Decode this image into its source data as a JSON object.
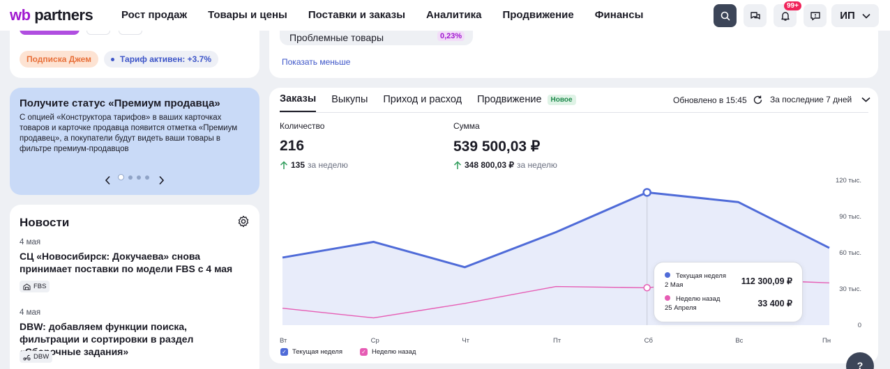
{
  "brand": {
    "prefix": "wb",
    "name": "partners"
  },
  "nav": [
    "Рост продаж",
    "Товары и цены",
    "Поставки и заказы",
    "Аналитика",
    "Продвижение",
    "Финансы"
  ],
  "topbar": {
    "notifications_badge": "99+",
    "user_initials": "ИП"
  },
  "subscription": {
    "pill": "Подписка Джем",
    "tariff": "Тариф активен: +3.7%"
  },
  "problems": {
    "label": "Проблемные товары",
    "value": "0,23%",
    "toggle": "Показать меньше"
  },
  "promo": {
    "title": "Получите статус «Премиум продавца»",
    "text": "С опцией «Конструктора тарифов» в ваших карточках товаров и карточке продавца появится отметка «Премиум продавец», а покупатели будут видеть ваши товары в фильтре премиум-продавцов"
  },
  "news": {
    "title": "Новости",
    "items": [
      {
        "date": "4 мая",
        "headline": "СЦ «Новосибирск: Докучаева» снова принимает поставки по модели FBS с 4 мая",
        "tag": "FBS"
      },
      {
        "date": "4 мая",
        "headline": "DBW: добавляем функции поиска, фильтрации и сортировки в раздел «Сборочные задания»",
        "tag": "DBW"
      }
    ]
  },
  "stats": {
    "tabs": [
      "Заказы",
      "Выкупы",
      "Приход и расход",
      "Продвижение"
    ],
    "new_badge": "Новое",
    "updated": "Обновлено в 15:45",
    "period": "За последние 7 дней",
    "quantity": {
      "label": "Количество",
      "value": "216",
      "delta": "135",
      "suffix": "за неделю"
    },
    "sum": {
      "label": "Сумма",
      "value": "539 500,03 ₽",
      "delta": "348 800,03 ₽",
      "suffix": "за неделю"
    }
  },
  "chart_data": {
    "type": "area",
    "categories": [
      "Вт",
      "Ср",
      "Чт",
      "Пт",
      "Сб",
      "Вс",
      "Пн"
    ],
    "y_ticks": [
      "0",
      "30 тыс.",
      "60 тыс.",
      "90 тыс.",
      "120 тыс."
    ],
    "ylim": [
      0,
      120000
    ],
    "series": [
      {
        "name": "Текущая неделя",
        "values": [
          56000,
          69000,
          48000,
          77000,
          110000,
          102000,
          64000
        ],
        "color": "#4f6bd8"
      },
      {
        "name": "Неделю назад",
        "values": [
          14000,
          6000,
          18000,
          32000,
          31000,
          38000,
          35000
        ],
        "color": "#e65cb4"
      }
    ],
    "tooltip": {
      "current": {
        "name": "Текущая неделя",
        "date": "2 Мая",
        "value": "112 300,09 ₽"
      },
      "previous": {
        "name": "Неделю назад",
        "date": "25 Апреля",
        "value": "33 400 ₽"
      }
    },
    "legend": [
      "Текущая неделя",
      "Неделю назад"
    ],
    "grid": false
  },
  "colors": {
    "accent": "#4f6bd8",
    "secondary": "#e65cb4",
    "promo": "#c9daf7",
    "brand": "#a11ad0"
  }
}
